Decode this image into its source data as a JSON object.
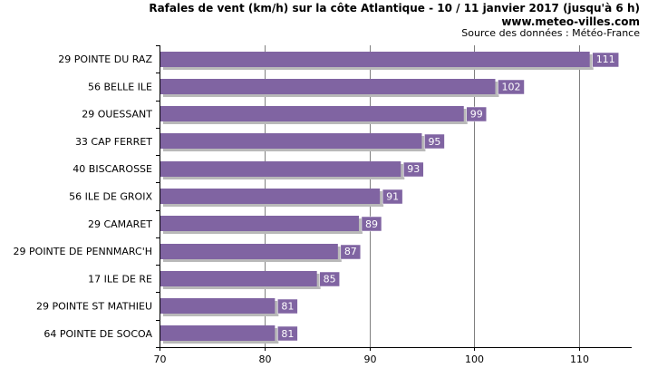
{
  "chart_data": {
    "type": "bar",
    "orientation": "horizontal",
    "title": "Rafales de vent (km/h) sur la côte Atlantique - 10 / 11 janvier 2017 (jusqu'à 6 h)",
    "subtitle": "www.meteo-villes.com",
    "source": "Source des données : Météo-France",
    "categories": [
      "29 POINTE DU RAZ",
      "56 BELLE ILE",
      "29 OUESSANT",
      "33 CAP FERRET",
      "40 BISCAROSSE",
      "56 ILE DE GROIX",
      "29 CAMARET",
      "29 POINTE DE PENNMARC'H",
      "17 ILE DE RE",
      "29 POINTE ST MATHIEU",
      "64 POINTE DE SOCOA"
    ],
    "values": [
      111,
      102,
      99,
      95,
      93,
      91,
      89,
      87,
      85,
      81,
      81
    ],
    "xlim": [
      70,
      115
    ],
    "xticks": [
      70,
      80,
      90,
      100,
      110
    ],
    "xlabel": "",
    "ylabel": "",
    "grid": true,
    "colors": {
      "bar": "#8064a2",
      "bar_shadow": "#b9b9b9",
      "label_bg": "#8064a2",
      "grid": "#7f7f7f",
      "axis": "#000000"
    }
  }
}
